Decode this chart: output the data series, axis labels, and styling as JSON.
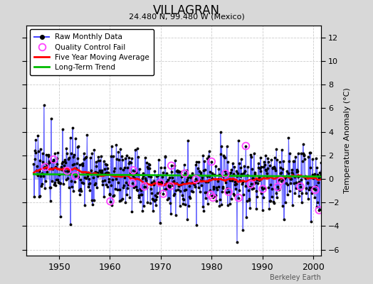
{
  "title": "VILLAGRAN",
  "subtitle": "24.480 N, 99.480 W (Mexico)",
  "ylabel": "Temperature Anomaly (°C)",
  "watermark": "Berkeley Earth",
  "xlim": [
    1943.5,
    2001.5
  ],
  "ylim": [
    -6.5,
    13.0
  ],
  "yticks": [
    -6,
    -4,
    -2,
    0,
    2,
    4,
    6,
    8,
    10,
    12
  ],
  "xticks": [
    1950,
    1960,
    1970,
    1980,
    1990,
    2000
  ],
  "raw_color": "#4444ff",
  "stem_color": "#aaaaff",
  "ma_color": "#ff0000",
  "trend_color": "#00bb00",
  "qc_color": "#ff44ff",
  "bg_color": "#ffffff",
  "fig_color": "#d8d8d8",
  "grid_color": "#cccccc",
  "seed": 17
}
